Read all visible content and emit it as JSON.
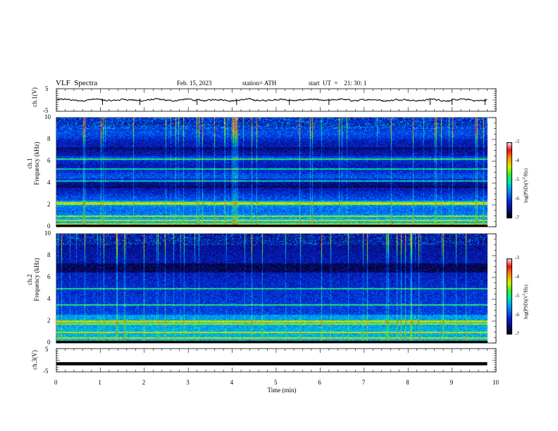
{
  "header": {
    "title": "VLF  Spectra",
    "date": "Feb. 15, 2023",
    "station": "station= ATH",
    "start": "start  UT  =    21: 30: 1"
  },
  "chart_data": [
    {
      "type": "line",
      "name": "ch1-waveform",
      "ylabel": "ch.1(V)",
      "ylim": [
        -5,
        5
      ],
      "yticks": [
        "5",
        "-5"
      ],
      "xlim": [
        0,
        10
      ],
      "data_xmax": 9.8,
      "approx_level": 0,
      "approx_amplitude": 0.8
    },
    {
      "type": "heatmap",
      "name": "ch1-spectrogram",
      "ylabel": "ch.1\nFrequency (kHz)",
      "ylim": [
        0,
        10
      ],
      "yticks": [
        "0",
        "2",
        "4",
        "6",
        "8",
        "10"
      ],
      "xlim": [
        0,
        10
      ],
      "data_xmax": 9.8,
      "colorbar": {
        "label": "log(PSD)(V²/Hz)",
        "range": [
          -7,
          -3
        ],
        "ticks": [
          "-3",
          "-4",
          "-5",
          "-6",
          "-7"
        ]
      },
      "bands_khz": [
        0.3,
        0.6,
        1.0,
        2.1,
        2.2,
        4.2,
        5.3,
        6.2
      ]
    },
    {
      "type": "heatmap",
      "name": "ch2-spectrogram",
      "ylabel": "ch.2\nFrequency (kHz)",
      "ylim": [
        0,
        10
      ],
      "yticks": [
        "0",
        "2",
        "4",
        "6",
        "8",
        "10"
      ],
      "xlim": [
        0,
        10
      ],
      "data_xmax": 9.8,
      "colorbar": {
        "label": "log(PSD)(V²/Hz)",
        "range": [
          -7,
          -3
        ],
        "ticks": [
          "-3",
          "-4",
          "-5",
          "-6",
          "-7"
        ]
      },
      "bands_khz": [
        0.5,
        1.0,
        1.8,
        2.0,
        3.5,
        5.0
      ]
    },
    {
      "type": "line",
      "name": "ch3-waveform",
      "ylabel": "ch.3(V)",
      "ylim": [
        -5,
        5
      ],
      "yticks": [
        "5",
        "-5"
      ],
      "xlim": [
        0,
        10
      ],
      "data_xmax": 9.8,
      "approx_level": -1.5,
      "approx_amplitude": 0
    }
  ],
  "xaxis": {
    "label": "Time  (min)",
    "ticks": [
      "0",
      "1",
      "2",
      "3",
      "4",
      "5",
      "6",
      "7",
      "8",
      "9",
      "10"
    ]
  }
}
